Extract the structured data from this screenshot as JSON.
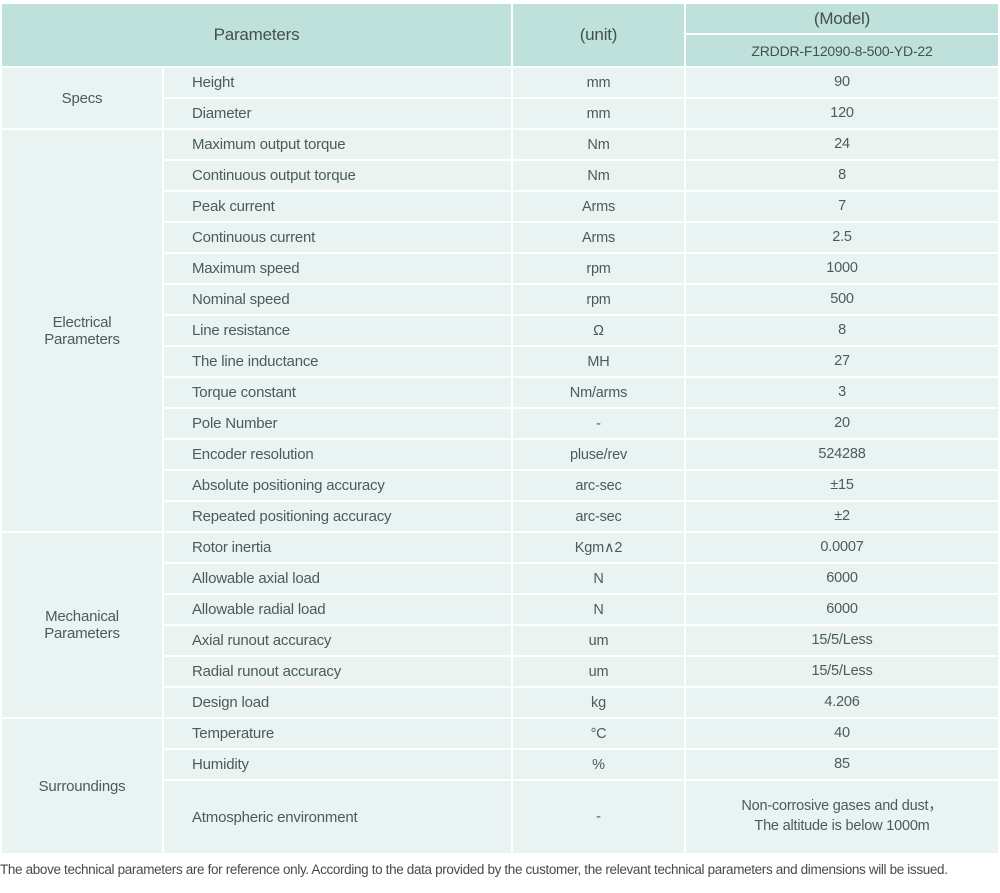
{
  "header": {
    "parameters_label": "Parameters",
    "unit_label": "(unit)",
    "model_label": "(Model)",
    "model_number": "ZRDDR-F12090-8-500-YD-22"
  },
  "table": {
    "groups": [
      {
        "label": "Specs",
        "rows": [
          {
            "param": "Height",
            "unit": "mm",
            "value": "90"
          },
          {
            "param": "Diameter",
            "unit": "mm",
            "value": "120"
          }
        ]
      },
      {
        "label": "Electrical Parameters",
        "rows": [
          {
            "param": "Maximum output torque",
            "unit": "Nm",
            "value": "24"
          },
          {
            "param": "Continuous output torque",
            "unit": "Nm",
            "value": "8"
          },
          {
            "param": "Peak current",
            "unit": "Arms",
            "value": "7"
          },
          {
            "param": "Continuous current",
            "unit": "Arms",
            "value": "2.5"
          },
          {
            "param": "Maximum speed",
            "unit": "rpm",
            "value": "1000"
          },
          {
            "param": "Nominal speed",
            "unit": "rpm",
            "value": "500"
          },
          {
            "param": "Line resistance",
            "unit": "Ω",
            "value": "8"
          },
          {
            "param": "The line inductance",
            "unit": "MH",
            "value": "27"
          },
          {
            "param": "Torque constant",
            "unit": "Nm/arms",
            "value": "3"
          },
          {
            "param": "Pole Number",
            "unit": "-",
            "value": "20"
          },
          {
            "param": "Encoder resolution",
            "unit": "pluse/rev",
            "value": "524288"
          },
          {
            "param": "Absolute positioning accuracy",
            "unit": "arc-sec",
            "value": "±15"
          },
          {
            "param": "Repeated positioning accuracy",
            "unit": "arc-sec",
            "value": "±2"
          }
        ]
      },
      {
        "label": "Mechanical Parameters",
        "rows": [
          {
            "param": "Rotor inertia",
            "unit": "Kgm∧2",
            "value": "0.0007"
          },
          {
            "param": "Allowable axial load",
            "unit": "N",
            "value": "6000"
          },
          {
            "param": "Allowable radial load",
            "unit": "N",
            "value": "6000"
          },
          {
            "param": "Axial runout accuracy",
            "unit": "um",
            "value": "15/5/Less"
          },
          {
            "param": "Radial runout accuracy",
            "unit": "um",
            "value": "15/5/Less"
          },
          {
            "param": "Design load",
            "unit": "kg",
            "value": "4.206"
          }
        ]
      },
      {
        "label": "Surroundings",
        "rows": [
          {
            "param": "Temperature",
            "unit": "°C",
            "value": "40"
          },
          {
            "param": "Humidity",
            "unit": "%",
            "value": "85"
          },
          {
            "param": "Atmospheric environment",
            "unit": "-",
            "value": "Non-corrosive gases and dust，\nThe altitude is below 1000m"
          }
        ]
      }
    ]
  },
  "footer": {
    "note": "The above technical parameters are for reference only. According to the data provided by the customer, the relevant technical parameters and dimensions will be issued."
  },
  "colors": {
    "header_bg": "#bfe1dc",
    "cell_bg": "#e9f4f2",
    "text": "#4d5a58"
  }
}
